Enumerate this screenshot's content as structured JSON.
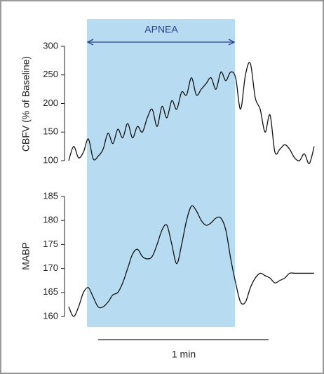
{
  "chart_data": [
    {
      "type": "line",
      "ylabel": "CBFV (% of Baseline)",
      "annotation": "APNEA",
      "ylim": [
        100,
        300
      ],
      "yticks": [
        100,
        150,
        200,
        250,
        300
      ],
      "series": [
        {
          "color": "#111111",
          "values": [
            100,
            125,
            105,
            115,
            138,
            103,
            108,
            120,
            148,
            130,
            155,
            140,
            165,
            140,
            160,
            150,
            175,
            190,
            160,
            195,
            175,
            205,
            190,
            220,
            215,
            245,
            215,
            225,
            235,
            245,
            225,
            255,
            240,
            255,
            245,
            190,
            250,
            270,
            210,
            190,
            150,
            180,
            115,
            120,
            128,
            120,
            105,
            100,
            112,
            95,
            125
          ]
        }
      ]
    },
    {
      "type": "line",
      "ylabel": "MABP",
      "scale_label": "1 min",
      "ylim": [
        160,
        185
      ],
      "yticks": [
        160,
        165,
        170,
        175,
        180,
        185
      ],
      "series": [
        {
          "color": "#111111",
          "values": [
            162,
            160,
            162,
            165,
            166,
            164,
            162,
            162,
            163,
            164.5,
            165,
            167,
            170,
            173,
            174,
            172.5,
            172,
            172.5,
            175,
            178,
            179,
            175,
            171,
            175,
            180,
            183,
            182,
            180,
            179,
            179.5,
            180.5,
            180.5,
            178,
            172,
            167,
            163,
            163,
            166,
            168,
            169,
            168.5,
            168,
            167,
            167.5,
            168,
            169,
            169,
            169,
            169,
            169,
            169
          ]
        }
      ]
    }
  ]
}
